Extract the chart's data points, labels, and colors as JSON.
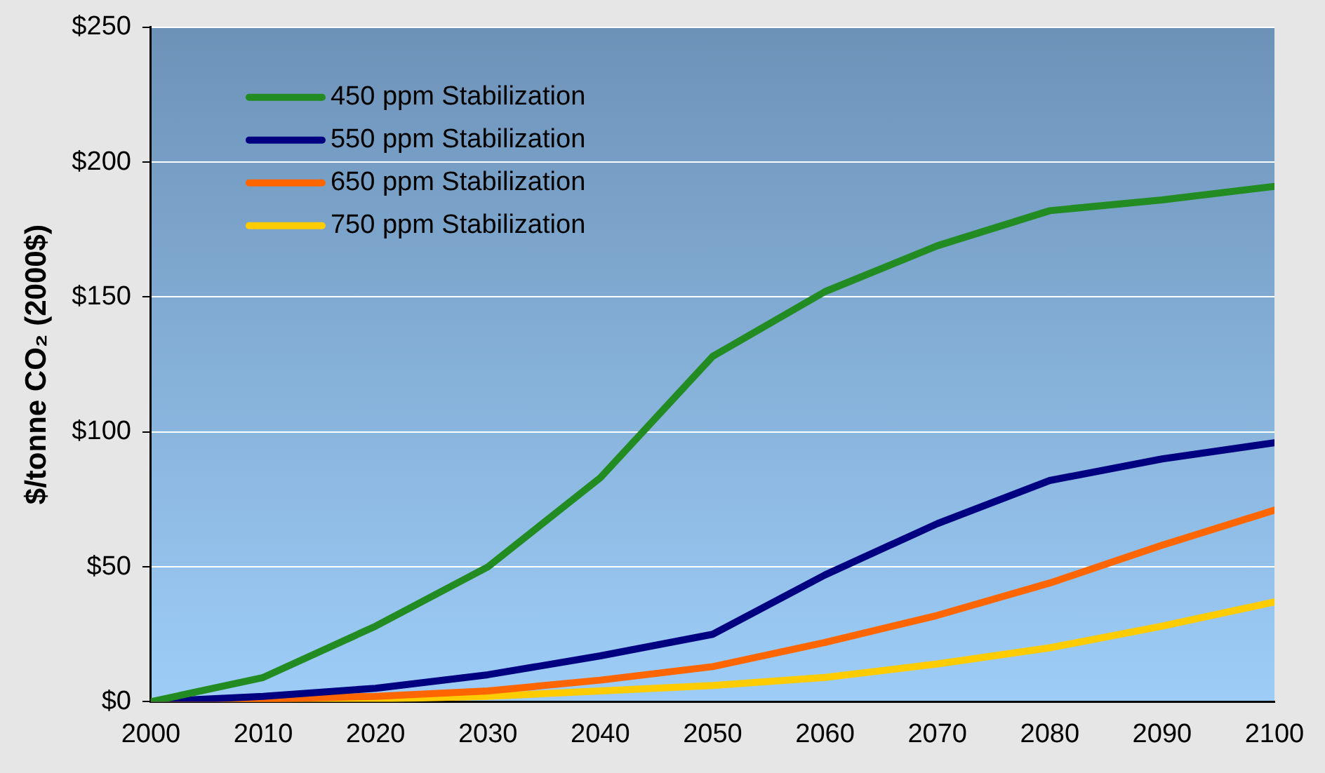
{
  "chart_data": {
    "type": "line",
    "ylabel": "$/tonne CO₂ (2000$)",
    "x": [
      2000,
      2010,
      2020,
      2030,
      2040,
      2050,
      2060,
      2070,
      2080,
      2090,
      2100
    ],
    "series": [
      {
        "name": "450 ppm Stabilization",
        "color": "#228b22",
        "values": [
          0,
          9,
          28,
          50,
          83,
          128,
          152,
          169,
          182,
          186,
          191
        ]
      },
      {
        "name": "550 ppm Stabilization",
        "color": "#000080",
        "values": [
          0,
          2,
          5,
          10,
          17,
          25,
          47,
          66,
          82,
          90,
          96
        ]
      },
      {
        "name": "650 ppm Stabilization",
        "color": "#ff6600",
        "values": [
          0,
          1,
          2,
          4,
          8,
          13,
          22,
          32,
          44,
          58,
          71
        ]
      },
      {
        "name": "750 ppm Stabilization",
        "color": "#ffcc00",
        "values": [
          0,
          0.5,
          1,
          2,
          4,
          6,
          9,
          14,
          20,
          28,
          37
        ]
      }
    ],
    "xlim": [
      2000,
      2100
    ],
    "xticks": [
      2000,
      2010,
      2020,
      2030,
      2040,
      2050,
      2060,
      2070,
      2080,
      2090,
      2100
    ],
    "ylim": [
      0,
      250
    ],
    "yticks": [
      {
        "value": 0,
        "label": "$0"
      },
      {
        "value": 50,
        "label": "$50"
      },
      {
        "value": 100,
        "label": "$100"
      },
      {
        "value": 150,
        "label": "$150"
      },
      {
        "value": 200,
        "label": "$200"
      },
      {
        "value": 250,
        "label": "$250"
      }
    ],
    "grid": "y",
    "legend": "top left",
    "marker": "none",
    "line_style": "solid"
  }
}
